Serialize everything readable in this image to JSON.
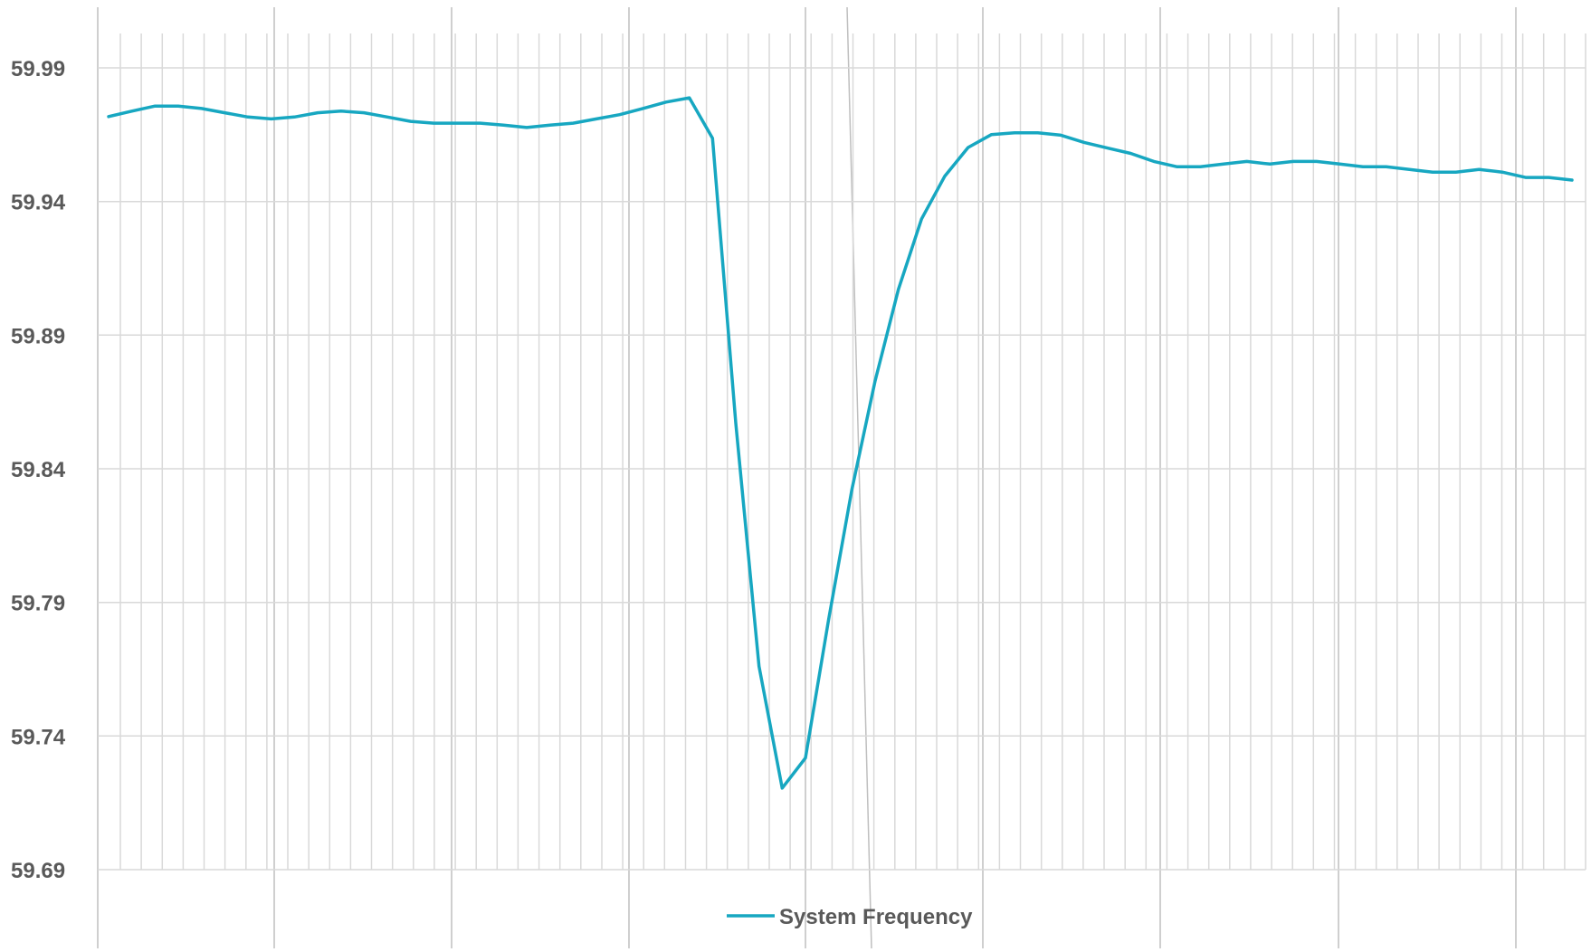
{
  "chart_data": {
    "type": "line",
    "title": "",
    "xlabel": "",
    "ylabel": "",
    "ylim": [
      59.69,
      59.99
    ],
    "y_ticks": [
      "59.99",
      "59.94",
      "59.89",
      "59.84",
      "59.79",
      "59.74",
      "59.69"
    ],
    "grid": true,
    "legend": {
      "position": "bottom",
      "label": "System Frequency"
    },
    "series": [
      {
        "name": "System Frequency",
        "color": "#17A7C1",
        "values": [
          59.9718,
          59.9738,
          59.9757,
          59.9757,
          59.9748,
          59.9732,
          59.9716,
          59.9709,
          59.9716,
          59.9732,
          59.9738,
          59.9732,
          59.9716,
          59.97,
          59.9693,
          59.9693,
          59.9693,
          59.9686,
          59.9677,
          59.9686,
          59.9693,
          59.9709,
          59.9725,
          59.9748,
          59.9772,
          59.9788,
          59.9637,
          59.8571,
          59.7661,
          59.7205,
          59.7318,
          59.7838,
          59.8322,
          59.8729,
          59.9071,
          59.9335,
          59.9495,
          59.9602,
          59.965,
          59.9657,
          59.9657,
          59.9648,
          59.9621,
          59.96,
          59.958,
          59.955,
          59.953,
          59.953,
          59.954,
          59.955,
          59.954,
          59.955,
          59.955,
          59.954,
          59.953,
          59.953,
          59.952,
          59.951,
          59.951,
          59.952,
          59.951,
          59.949,
          59.949,
          59.948
        ]
      }
    ]
  }
}
